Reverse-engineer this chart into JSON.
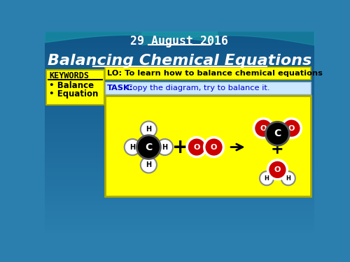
{
  "title": "Balancing Chemical Equations",
  "date": "29 August 2016",
  "lo_text": "LO: To learn how to balance chemical equations",
  "task_text_bold": "TASK:",
  "task_text_normal": " Copy the diagram, try to balance it.",
  "keywords_title": "KEYWORDS",
  "keywords": [
    "Balance",
    "Equation"
  ],
  "bg_color": "#2a7fae",
  "teal_wave": "#1a9aaa",
  "yellow_bg": "#ffff00",
  "light_blue_task": "#cce8ff",
  "atom_C_color": "#000000",
  "atom_H_color": "#ffffff",
  "atom_O_color": "#cc0000"
}
